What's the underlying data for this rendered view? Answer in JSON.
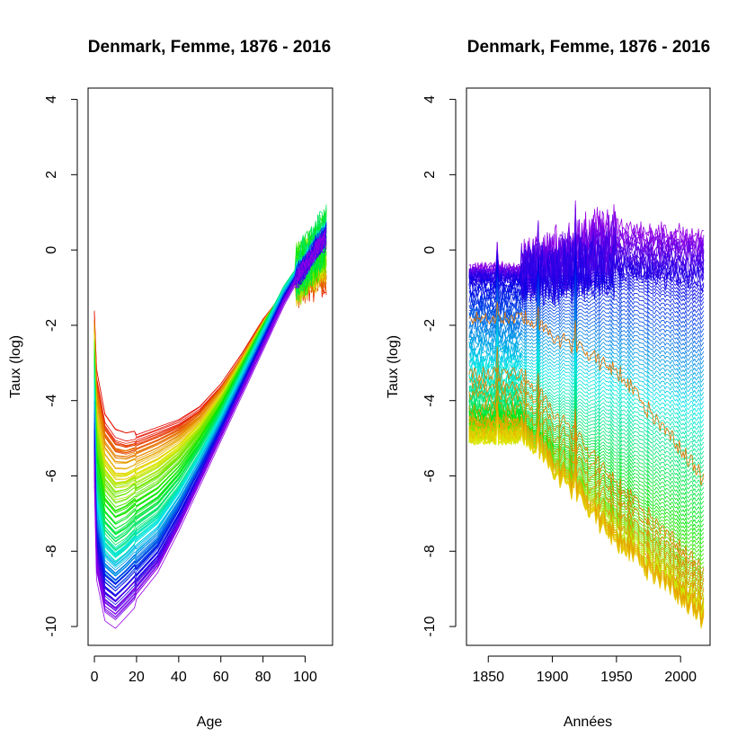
{
  "chart_data": [
    {
      "type": "line",
      "title": "Denmark, Femme, 1876 - 2016",
      "xlabel": "Age",
      "ylabel": "Taux (log)",
      "xlim": [
        -3,
        113
      ],
      "ylim": [
        -10.5,
        4.3
      ],
      "x_ticks": [
        0,
        20,
        40,
        60,
        80,
        100
      ],
      "y_ticks": [
        -10,
        -8,
        -6,
        -4,
        -2,
        0,
        2,
        4
      ],
      "series_palette": "rainbow (red = earliest years, violet = latest years)",
      "series_count": 141,
      "year_range": [
        1876,
        2016
      ],
      "key_curves": [
        {
          "year": 1876,
          "age_x": [
            0,
            1,
            5,
            10,
            15,
            20,
            30,
            40,
            50,
            60,
            70,
            80,
            90,
            95,
            100,
            105,
            110
          ],
          "log_rate": [
            -1.8,
            -3.3,
            -4.5,
            -4.9,
            -5.0,
            -4.95,
            -4.75,
            -4.55,
            -4.2,
            -3.6,
            -2.8,
            -1.9,
            -1.2,
            -0.8,
            -0.7,
            -0.6,
            -0.5
          ]
        },
        {
          "year": 1950,
          "age_x": [
            0,
            1,
            5,
            10,
            15,
            20,
            30,
            40,
            50,
            60,
            70,
            80,
            90,
            95,
            100,
            105,
            110
          ],
          "log_rate": [
            -3.2,
            -6.2,
            -7.5,
            -7.8,
            -7.6,
            -7.3,
            -6.9,
            -6.2,
            -5.3,
            -4.3,
            -3.2,
            -2.1,
            -1.0,
            -0.6,
            -0.3,
            0.1,
            0.6
          ]
        },
        {
          "year": 2016,
          "age_x": [
            0,
            1,
            5,
            10,
            15,
            20,
            30,
            40,
            50,
            60,
            70,
            80,
            90,
            95,
            100,
            105,
            110
          ],
          "log_rate": [
            -6.0,
            -8.5,
            -9.6,
            -9.8,
            -9.5,
            -9.2,
            -8.5,
            -7.4,
            -6.2,
            -5.0,
            -3.8,
            -2.6,
            -1.4,
            -0.9,
            -0.5,
            0.0,
            0.3
          ]
        }
      ],
      "grid": false,
      "legend": "none"
    },
    {
      "type": "line",
      "title": "Denmark, Femme, 1876 - 2016",
      "xlabel": "Années",
      "ylabel": "Taux (log)",
      "xlim": [
        1833,
        2023
      ],
      "ylim": [
        -10.5,
        4.3
      ],
      "x_ticks": [
        1850,
        1900,
        1950,
        2000
      ],
      "y_ticks": [
        -10,
        -8,
        -6,
        -4,
        -2,
        0,
        2,
        4
      ],
      "x_range_shown": [
        1835,
        2018
      ],
      "series_palette": "rainbow by age (orange = young ages, violet = oldest ages)",
      "series_count": 111,
      "age_range": [
        0,
        110
      ],
      "grid": false,
      "legend": "none"
    }
  ]
}
